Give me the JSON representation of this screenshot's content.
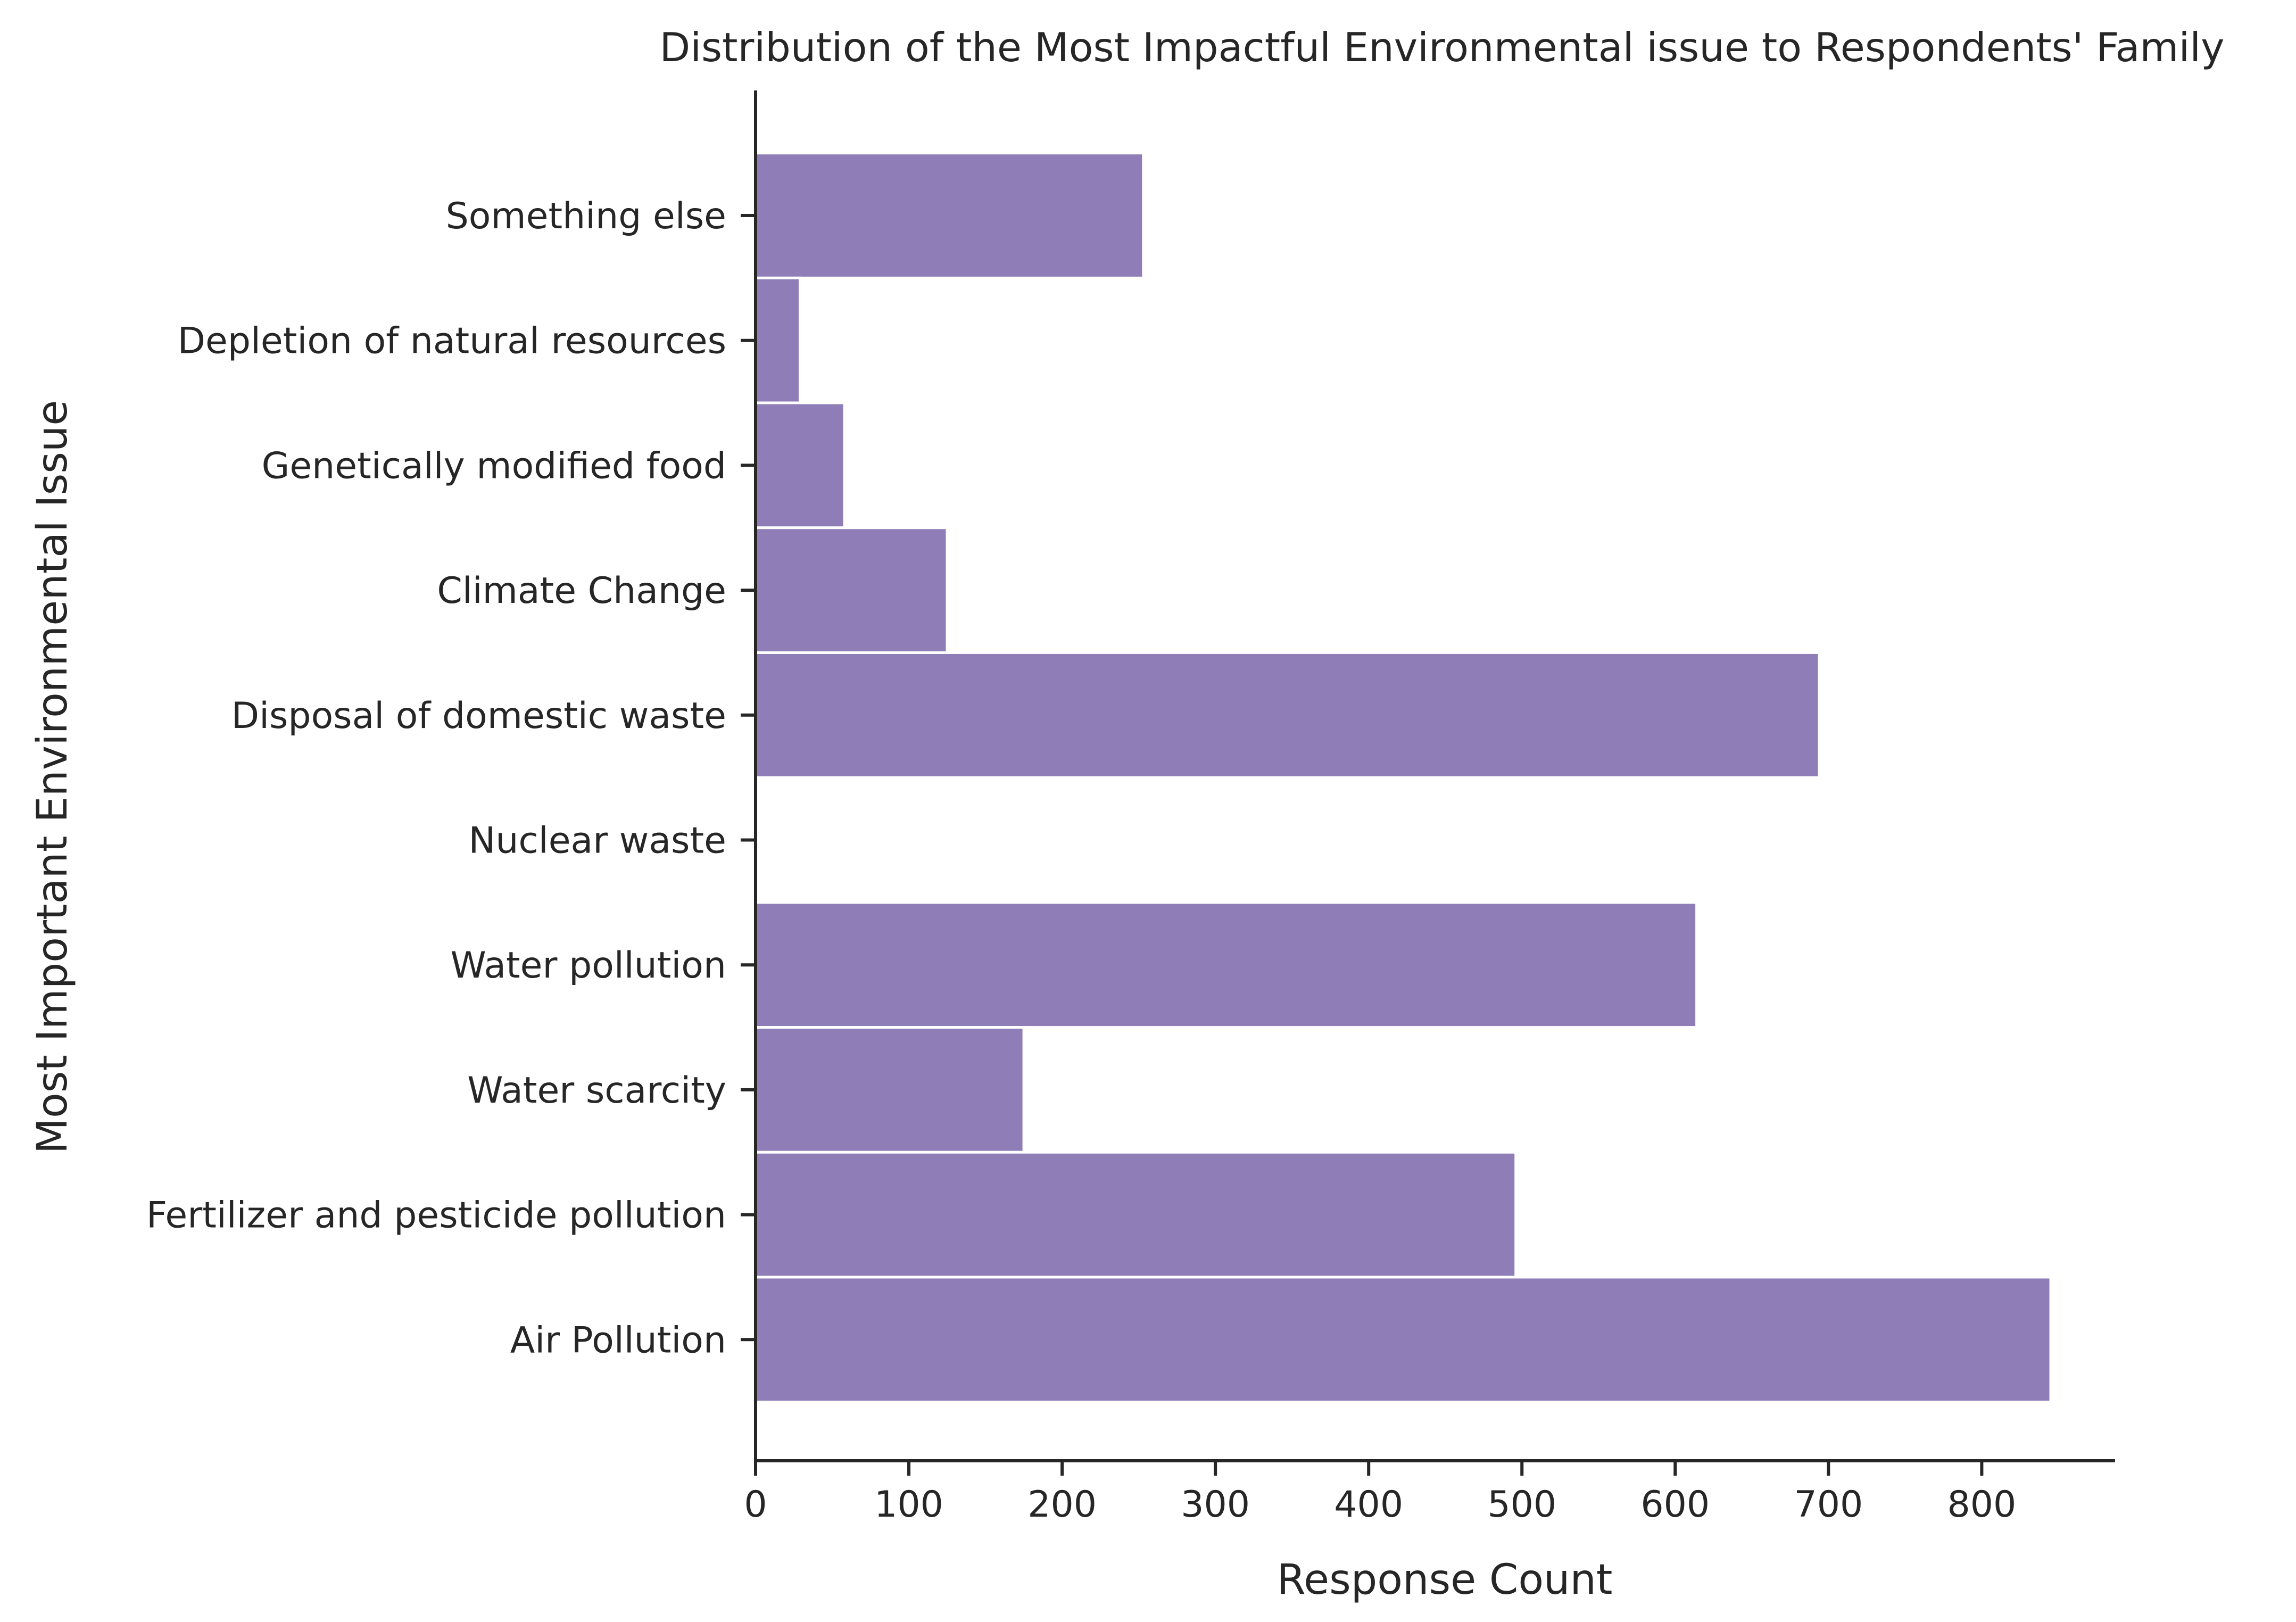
{
  "chart_data": {
    "type": "bar",
    "orientation": "horizontal",
    "title": "Distribution of the Most Impactful Environmental issue to Respondents' Family",
    "xlabel": "Response Count",
    "ylabel": "Most Important Environmental Issue",
    "categories": [
      "Something else",
      "Depletion of natural resources",
      "Genetically modified food",
      "Climate Change",
      "Disposal of domestic waste",
      "Nuclear waste",
      "Water pollution",
      "Water scarcity",
      "Fertilizer and pesticide pollution",
      "Air Pollution"
    ],
    "values": [
      253,
      29,
      58,
      125,
      694,
      1,
      614,
      175,
      496,
      845
    ],
    "xlim": [
      0,
      887
    ],
    "xticks": [
      0,
      100,
      200,
      300,
      400,
      500,
      600,
      700,
      800
    ],
    "grid": false,
    "legend": "none",
    "bar_color": "#8f7db8"
  }
}
